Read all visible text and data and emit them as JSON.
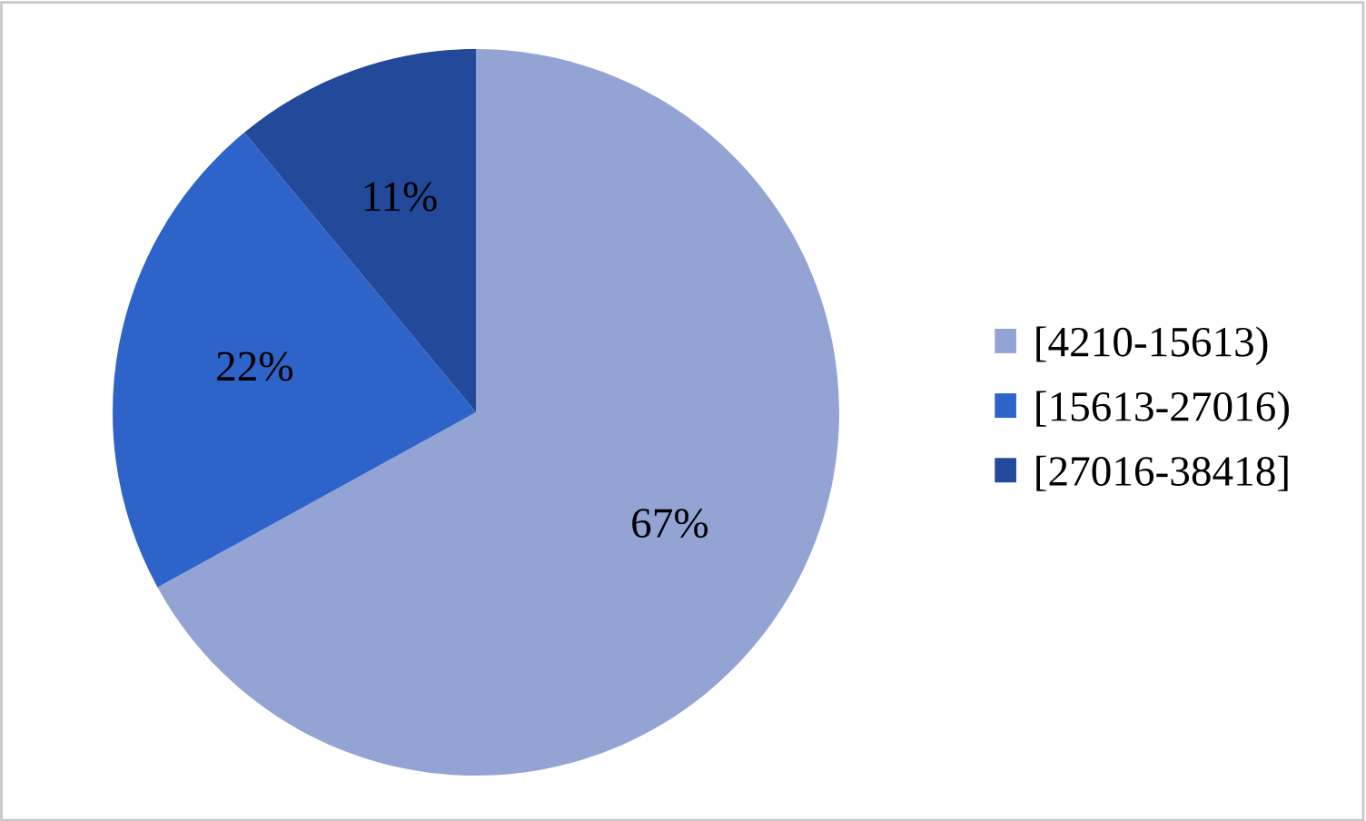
{
  "chart_data": {
    "type": "pie",
    "categories": [
      "[4210-15613)",
      "[15613-27016)",
      "[27016-38418]"
    ],
    "values": [
      67,
      22,
      11
    ],
    "value_labels": [
      "67%",
      "22%",
      "11%"
    ],
    "colors": [
      "#93a3d3",
      "#2e63c9",
      "#23499b"
    ],
    "legend": "right"
  }
}
